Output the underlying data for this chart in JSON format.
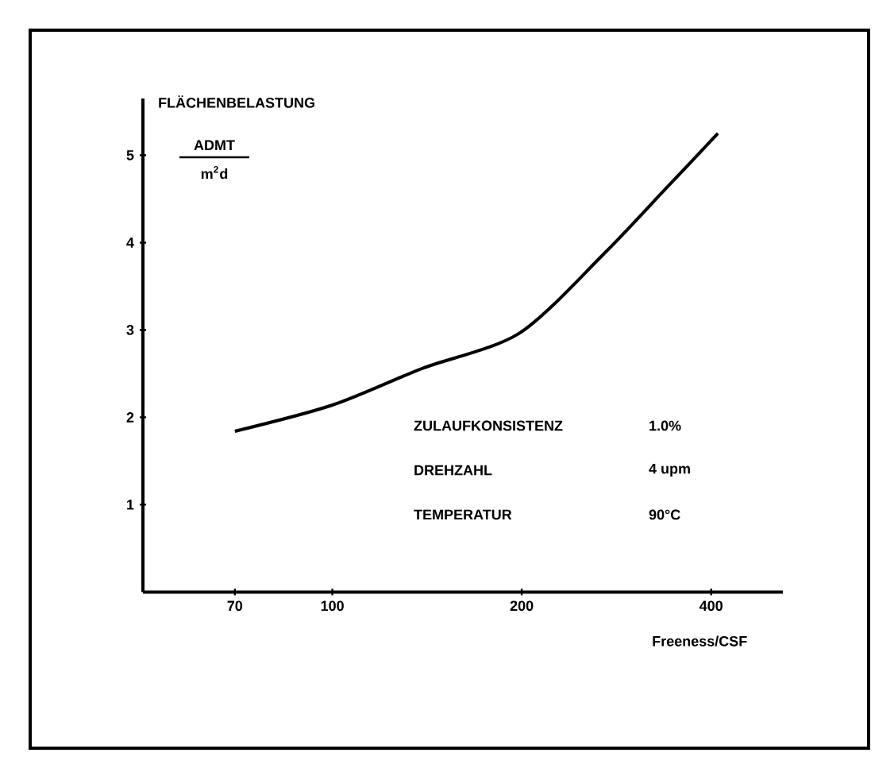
{
  "chart_data": {
    "type": "line",
    "xlabel": "Freeness/CSF",
    "ylabel": "FLÄCHENBELASTUNG",
    "annotations": [
      "ADMT",
      "m$^{2}$d",
      "ZULAUFKONSISTENZ",
      "1.0%",
      "DREHZAHL",
      "4 upm",
      "TEMPERATUR",
      "90°C"
    ],
    "x": [
      70,
      100,
      139,
      198,
      270,
      337,
      410
    ],
    "series": [
      {
        "color": "#000000",
        "values": [
          1.84,
          2.14,
          2.56,
          2.96,
          3.87,
          4.6,
          5.25
        ]
      }
    ],
    "log": "x",
    "xlim": [
      50,
      520
    ],
    "ylim": [
      0,
      5.65
    ],
    "xticks": [
      70,
      100,
      200,
      400
    ],
    "yticks": [
      1,
      2,
      3,
      4,
      5
    ],
    "grid": false,
    "marker": "none",
    "line_style": "solid"
  }
}
